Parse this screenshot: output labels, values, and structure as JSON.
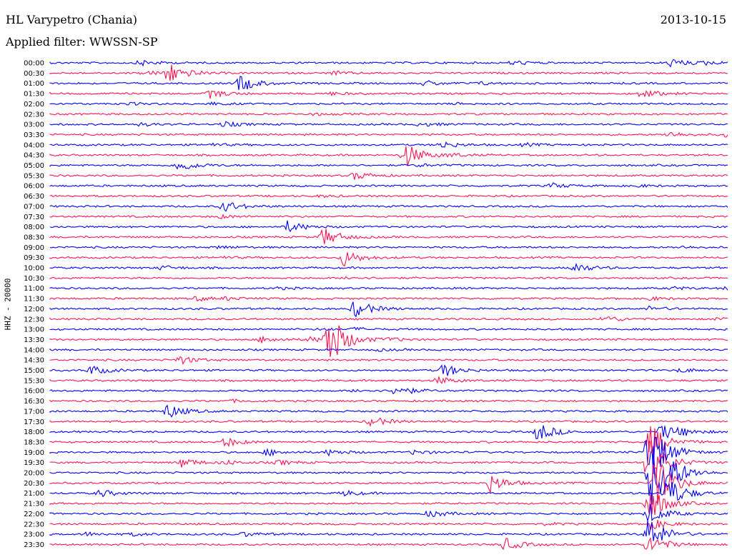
{
  "header": {
    "station": "HL Varypetro (Chania)",
    "date": "2013-10-15",
    "filter_label": "Applied filter: WWSSN-SP"
  },
  "colors": {
    "even": "#0000ff",
    "odd": "#ff1450"
  },
  "chart_data": {
    "type": "line",
    "title": "HL Varypetro (Chania)",
    "subtitle": "Applied filter: WWSSN-SP",
    "ylabel": "HHZ - 20000",
    "xlabel": "",
    "grid": false,
    "legend": "none",
    "trace_duration_minutes": 30,
    "rows": [
      {
        "label": "00:00",
        "events": [
          [
            4,
            0.4
          ],
          [
            20.5,
            0.3
          ],
          [
            27.5,
            0.6
          ],
          [
            29,
            0.2
          ]
        ]
      },
      {
        "label": "00:30",
        "events": [
          [
            5.2,
            1.6
          ],
          [
            12.5,
            0.25
          ],
          [
            4.2,
            0.3
          ]
        ]
      },
      {
        "label": "01:00",
        "events": [
          [
            8.4,
            1.2
          ],
          [
            16.6,
            0.35
          ],
          [
            19,
            0.2
          ]
        ]
      },
      {
        "label": "01:30",
        "events": [
          [
            7.1,
            0.6
          ],
          [
            12.4,
            0.2
          ],
          [
            26.2,
            0.6
          ]
        ]
      },
      {
        "label": "02:00",
        "events": [
          [
            7.0,
            0.2
          ],
          [
            3.4,
            0.15
          ],
          [
            18,
            0.1
          ]
        ]
      },
      {
        "label": "02:30",
        "events": [
          [
            11.7,
            0.15
          ]
        ]
      },
      {
        "label": "03:00",
        "events": [
          [
            3.9,
            0.2
          ],
          [
            7.7,
            0.35
          ],
          [
            16.4,
            0.3
          ]
        ]
      },
      {
        "label": "03:30",
        "events": [
          [
            27.4,
            0.4
          ],
          [
            30,
            0.4
          ]
        ]
      },
      {
        "label": "04:00",
        "events": [
          [
            7.1,
            0.2
          ],
          [
            17.3,
            0.5
          ],
          [
            21,
            0.2
          ]
        ]
      },
      {
        "label": "04:30",
        "events": [
          [
            15.7,
            1.8
          ],
          [
            17.7,
            0.2
          ]
        ]
      },
      {
        "label": "05:00",
        "events": [
          [
            5.7,
            0.9
          ],
          [
            16.3,
            0.2
          ]
        ]
      },
      {
        "label": "05:30",
        "events": [
          [
            13.5,
            0.55
          ]
        ]
      },
      {
        "label": "06:00",
        "events": [
          [
            22.2,
            0.35
          ],
          [
            26,
            0.15
          ]
        ]
      },
      {
        "label": "06:30",
        "events": [
          [
            12,
            0.15
          ]
        ]
      },
      {
        "label": "07:00",
        "events": [
          [
            7.7,
            0.8
          ]
        ]
      },
      {
        "label": "07:30",
        "events": [
          [
            7.5,
            0.25
          ]
        ]
      },
      {
        "label": "08:00",
        "events": [
          [
            10.5,
            0.8
          ]
        ]
      },
      {
        "label": "08:30",
        "events": [
          [
            12.1,
            1.3
          ]
        ]
      },
      {
        "label": "09:00",
        "events": [
          [
            7.5,
            0.2
          ],
          [
            28,
            0.15
          ]
        ]
      },
      {
        "label": "09:30",
        "events": [
          [
            13.0,
            1.2
          ],
          [
            7.5,
            0.15
          ]
        ]
      },
      {
        "label": "10:00",
        "events": [
          [
            4.9,
            0.3
          ],
          [
            23.2,
            0.7
          ]
        ]
      },
      {
        "label": "10:30",
        "events": [
          [
            13.1,
            0.2
          ]
        ]
      },
      {
        "label": "11:00",
        "events": [
          [
            10,
            0.15
          ],
          [
            27.6,
            0.2
          ],
          [
            30,
            0.2
          ]
        ]
      },
      {
        "label": "11:30",
        "events": [
          [
            6.5,
            0.3
          ],
          [
            7.8,
            0.2
          ],
          [
            26.5,
            0.25
          ]
        ]
      },
      {
        "label": "12:00",
        "events": [
          [
            13.5,
            1.3
          ],
          [
            26.5,
            0.3
          ]
        ]
      },
      {
        "label": "12:30",
        "events": [
          [
            24.5,
            0.5
          ],
          [
            29.5,
            0.2
          ]
        ]
      },
      {
        "label": "13:00",
        "events": [
          [
            12,
            0.15
          ],
          [
            13.5,
            0.2
          ]
        ]
      },
      {
        "label": "13:30",
        "events": [
          [
            12.3,
            4.2
          ],
          [
            9.4,
            0.45
          ],
          [
            11.5,
            0.3
          ],
          [
            15,
            0.2
          ]
        ]
      },
      {
        "label": "14:00",
        "events": [
          [
            14.5,
            0.15
          ]
        ]
      },
      {
        "label": "14:30",
        "events": [
          [
            5.7,
            0.6
          ]
        ]
      },
      {
        "label": "15:00",
        "events": [
          [
            1.8,
            0.65
          ],
          [
            17.4,
            0.95
          ],
          [
            27.9,
            0.3
          ]
        ]
      },
      {
        "label": "15:30",
        "events": [
          [
            17.2,
            0.5
          ]
        ]
      },
      {
        "label": "16:00",
        "events": [
          [
            15.3,
            0.8
          ],
          [
            13.5,
            0.2
          ]
        ]
      },
      {
        "label": "16:30",
        "events": [
          [
            8,
            0.15
          ]
        ]
      },
      {
        "label": "17:00",
        "events": [
          [
            5.2,
            1.0
          ]
        ]
      },
      {
        "label": "17:30",
        "events": [
          [
            14.2,
            0.7
          ]
        ]
      },
      {
        "label": "18:00",
        "events": [
          [
            21.6,
            1.3
          ],
          [
            27.1,
            1.2
          ],
          [
            28,
            0.3
          ]
        ]
      },
      {
        "label": "18:30",
        "events": [
          [
            7.7,
            0.7
          ],
          [
            26.6,
            2.6
          ]
        ]
      },
      {
        "label": "19:00",
        "events": [
          [
            9.6,
            0.45
          ],
          [
            12.3,
            0.4
          ],
          [
            16.1,
            0.3
          ],
          [
            26.5,
            5
          ]
        ]
      },
      {
        "label": "19:30",
        "events": [
          [
            5.8,
            0.65
          ],
          [
            7.7,
            0.3
          ],
          [
            10.1,
            0.3
          ],
          [
            26.5,
            4
          ]
        ]
      },
      {
        "label": "20:00",
        "events": [
          [
            26.6,
            5
          ],
          [
            27.2,
            2
          ]
        ]
      },
      {
        "label": "20:30",
        "events": [
          [
            19.5,
            1.3
          ],
          [
            26.8,
            4
          ]
        ]
      },
      {
        "label": "21:00",
        "events": [
          [
            2.2,
            0.5
          ],
          [
            13.0,
            0.4
          ],
          [
            27.3,
            2.5
          ]
        ]
      },
      {
        "label": "21:30",
        "events": [
          [
            26.5,
            2.6
          ]
        ]
      },
      {
        "label": "22:00",
        "events": [
          [
            16.8,
            0.5
          ],
          [
            26.5,
            1.5
          ]
        ]
      },
      {
        "label": "22:30",
        "events": [
          [
            22,
            0.15
          ],
          [
            26.5,
            0.9
          ]
        ]
      },
      {
        "label": "23:00",
        "events": [
          [
            1.6,
            0.25
          ],
          [
            3.7,
            0.2
          ],
          [
            8.6,
            0.3
          ],
          [
            26.5,
            2.6
          ]
        ]
      },
      {
        "label": "23:30",
        "events": [
          [
            20.1,
            0.9
          ],
          [
            26.5,
            1.5
          ]
        ]
      }
    ]
  }
}
